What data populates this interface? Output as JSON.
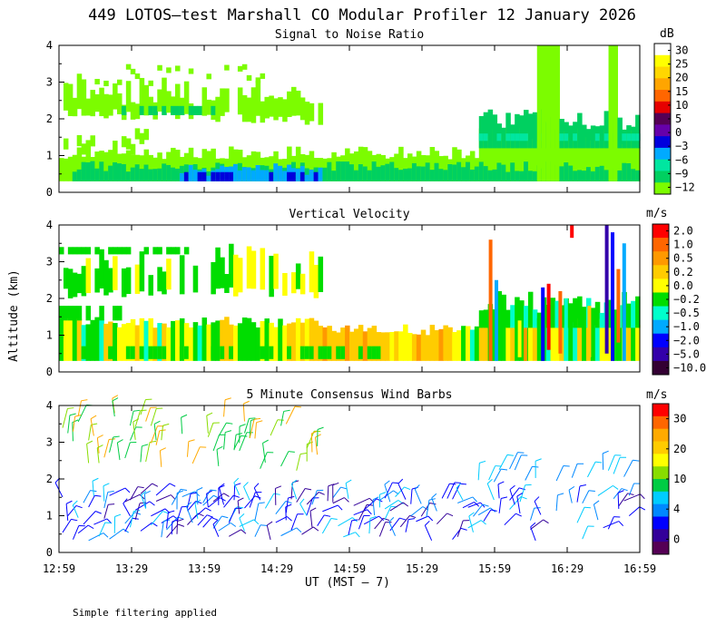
{
  "title": "449 LOTOS—test Marshall CO Modular Profiler 12 January 2026",
  "ylabel": "Altitude (km)",
  "xlabel": "UT  (MST – 7)",
  "footnote": "Simple filtering applied",
  "x_ticks": [
    "12:59",
    "13:29",
    "13:59",
    "14:29",
    "14:59",
    "15:29",
    "15:59",
    "16:29",
    "16:59"
  ],
  "chart_data": [
    {
      "type": "heatmap",
      "title": "Signal to Noise Ratio",
      "colorbar": {
        "unit": "dB",
        "ticks": [
          "30",
          "25",
          "20",
          "15",
          "10",
          "5",
          "0",
          "−3",
          "−6",
          "−9",
          "−12"
        ],
        "colors": [
          "#ffffff",
          "#ffff00",
          "#ffd700",
          "#ffa500",
          "#ff6600",
          "#e60000",
          "#550055",
          "#6600aa",
          "#0000dd",
          "#00aaff",
          "#00e6a0",
          "#00d060",
          "#7cfc00"
        ]
      },
      "ylim": [
        0,
        4
      ],
      "y_ticks": [
        "0",
        "1",
        "2",
        "3",
        "4"
      ],
      "xlim": [
        "12:59",
        "16:59"
      ],
      "features": [
        {
          "layer": "boundary layer 0.3-1.0 km",
          "snr_db": [
            -12,
            -3
          ]
        },
        {
          "layer": "upper layer 2.0-3.5 km",
          "snr_db": [
            -12,
            -9
          ]
        },
        {
          "layer": "column after 15:59",
          "snr_db": [
            -12,
            -3
          ]
        }
      ]
    },
    {
      "type": "heatmap",
      "title": "Vertical Velocity",
      "colorbar": {
        "unit": "m/s",
        "ticks": [
          "2.0",
          "1.0",
          "0.5",
          "0.2",
          "0.0",
          "−0.2",
          "−0.5",
          "−1.0",
          "−2.0",
          "−5.0",
          "−10.0"
        ],
        "colors": [
          "#ff0000",
          "#ff6600",
          "#ff9900",
          "#ffcc00",
          "#ffff00",
          "#00dd00",
          "#00ffcc",
          "#00aaff",
          "#0000ff",
          "#3300aa",
          "#330033"
        ]
      },
      "ylim": [
        0,
        4
      ],
      "y_ticks": [
        "0",
        "1",
        "2",
        "3",
        "4"
      ],
      "xlim": [
        "12:59",
        "16:59"
      ],
      "features": [
        {
          "region": "12:59-14:59 below 1.2 km",
          "velocity_ms": [
            -0.2,
            0.2
          ]
        },
        {
          "region": "14:29-15:29 below 1 km",
          "velocity_ms": [
            0.0,
            0.5
          ]
        },
        {
          "region": "15:59-16:59 convective",
          "velocity_ms": [
            -10.0,
            2.0
          ]
        }
      ]
    },
    {
      "type": "scatter",
      "title": "5 Minute Consensus Wind Barbs",
      "colorbar": {
        "unit": "m/s",
        "ticks": [
          "30",
          "20",
          "10",
          "4",
          "0"
        ],
        "colors": [
          "#ff0000",
          "#ff6600",
          "#ffaa00",
          "#ffcc00",
          "#ffff00",
          "#88dd00",
          "#00cc44",
          "#00ccff",
          "#0088ff",
          "#0000ff",
          "#330099",
          "#550055"
        ]
      },
      "ylim": [
        0,
        4
      ],
      "y_ticks": [
        "0",
        "1",
        "2",
        "3",
        "4"
      ],
      "xlim": [
        "12:59",
        "16:59"
      ],
      "features": [
        {
          "layer": "below 1.8 km",
          "speed_ms": [
            0,
            6
          ]
        },
        {
          "layer": "2.0-4.0 km",
          "speed_ms": [
            8,
            15
          ]
        }
      ]
    }
  ]
}
